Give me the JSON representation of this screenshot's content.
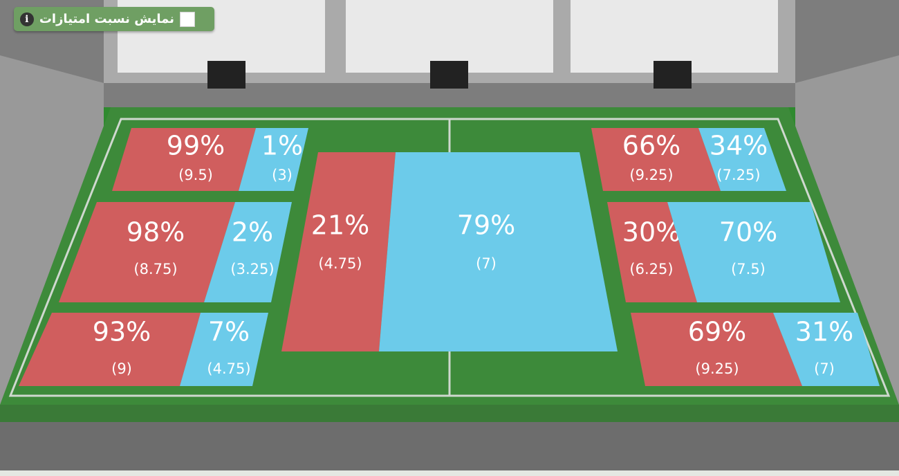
{
  "toggle": {
    "label": "نمایش نسبت امتیازات"
  },
  "zones": [
    {
      "home": {
        "percent": "99%",
        "score": "(9.5)"
      },
      "away": {
        "percent": "1%",
        "score": "(3)"
      }
    },
    {
      "home": {
        "percent": "98%",
        "score": "(8.75)"
      },
      "away": {
        "percent": "2%",
        "score": "(3.25)"
      }
    },
    {
      "home": {
        "percent": "93%",
        "score": "(9)"
      },
      "away": {
        "percent": "7%",
        "score": "(4.75)"
      }
    },
    {
      "home": {
        "percent": "21%",
        "score": "(4.75)"
      },
      "away": {
        "percent": "79%",
        "score": "(7)"
      }
    },
    {
      "home": {
        "percent": "66%",
        "score": "(9.25)"
      },
      "away": {
        "percent": "34%",
        "score": "(7.25)"
      }
    },
    {
      "home": {
        "percent": "30%",
        "score": "(6.25)"
      },
      "away": {
        "percent": "70%",
        "score": "(7.5)"
      }
    },
    {
      "home": {
        "percent": "69%",
        "score": "(9.25)"
      },
      "away": {
        "percent": "31%",
        "score": "(7)"
      }
    }
  ]
}
